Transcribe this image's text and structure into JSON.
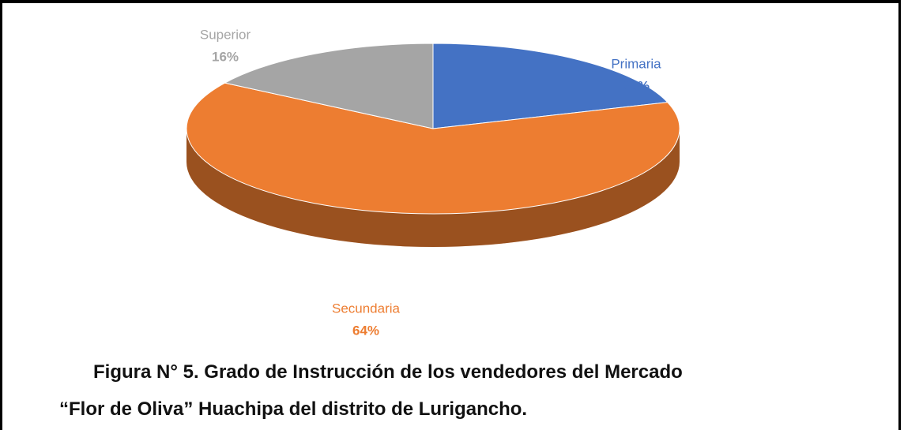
{
  "chart_data": {
    "type": "pie",
    "categories": [
      "Primaria",
      "Secundaria",
      "Superior"
    ],
    "values": [
      20,
      64,
      16
    ],
    "value_labels": [
      "20%",
      "64%",
      "16%"
    ],
    "colors": [
      "#4472c4",
      "#ed7d31",
      "#a5a5a5"
    ],
    "title": [
      "Figura N° 5. Grado de Instrucción de los vendedores del Mercado",
      "“Flor de Oliva” Huachipa del distrito de Lurigancho."
    ]
  }
}
